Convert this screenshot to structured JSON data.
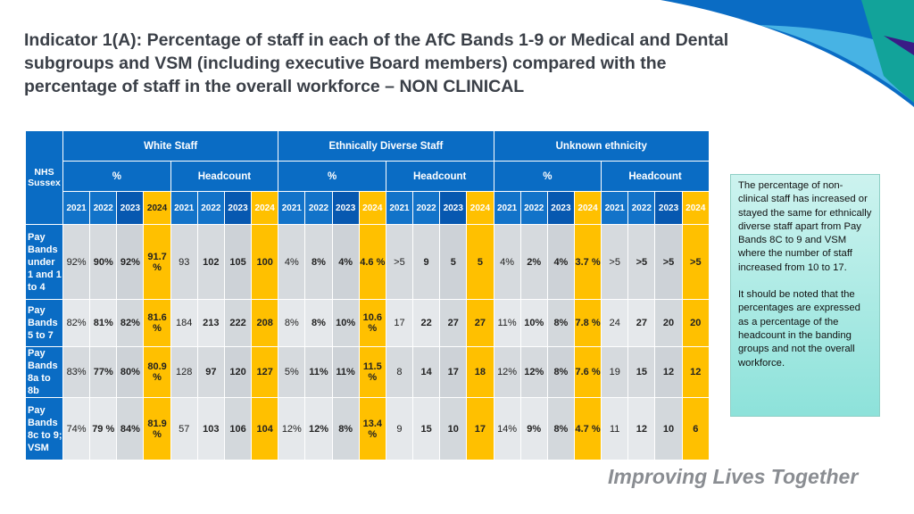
{
  "title": "Indicator 1(A): Percentage of staff in each of the AfC Bands 1-9 or Medical and Dental subgroups and VSM (including executive Board members) compared with the percentage of staff in the overall workforce – NON CLINICAL",
  "colors": {
    "header_blue": "#0a6cc4",
    "header_dark_blue": "#0758b0",
    "highlight_yellow": "#ffc000",
    "note_bg": "#aee9e2",
    "footer_gray": "#8a8d92"
  },
  "table": {
    "corner": "NHS Sussex",
    "groups": [
      "White Staff",
      "Ethnically Diverse Staff",
      "Unknown ethnicity"
    ],
    "subgroups": [
      "%",
      "Headcount",
      "%",
      "Headcount",
      "%",
      "Headcount"
    ],
    "years": [
      "2021",
      "2022",
      "2023",
      "2024"
    ],
    "rows": [
      {
        "label": "Pay Bands under 1 and 1 to 4",
        "values": [
          "92%",
          "90%",
          "92%",
          "91.7 %",
          "93",
          "102",
          "105",
          "100",
          "4%",
          "8%",
          "4%",
          "4.6 %",
          ">5",
          "9",
          "5",
          "5",
          "4%",
          "2%",
          "4%",
          "3.7 %",
          ">5",
          ">5",
          ">5",
          ">5"
        ]
      },
      {
        "label": "Pay Bands 5 to 7",
        "values": [
          "82%",
          "81%",
          "82%",
          "81.6 %",
          "184",
          "213",
          "222",
          "208",
          "8%",
          "8%",
          "10%",
          "10.6 %",
          "17",
          "22",
          "27",
          "27",
          "11%",
          "10%",
          "8%",
          "7.8 %",
          "24",
          "27",
          "20",
          "20"
        ]
      },
      {
        "label": "Pay Bands 8a to 8b",
        "values": [
          "83%",
          "77%",
          "80%",
          "80.9 %",
          "128",
          "97",
          "120",
          "127",
          "5%",
          "11%",
          "11%",
          "11.5 %",
          "8",
          "14",
          "17",
          "18",
          "12%",
          "12%",
          "8%",
          "7.6 %",
          "19",
          "15",
          "12",
          "12"
        ]
      },
      {
        "label": "Pay Bands 8c to 9; VSM",
        "values": [
          "74%",
          "79 %",
          "84%",
          "81.9 %",
          "57",
          "103",
          "106",
          "104",
          "12%",
          "12%",
          "8%",
          "13.4 %",
          "9",
          "15",
          "10",
          "17",
          "14%",
          "9%",
          "8%",
          "4.7 %",
          "11",
          "12",
          "10",
          "6"
        ]
      }
    ]
  },
  "note": {
    "p1": "The percentage of non-clinical staff has increased or stayed the same for ethnically diverse staff apart from Pay Bands 8C to 9 and VSM where the number of staff increased from 10 to 17.",
    "p2": "It should be noted that the percentages are expressed as a percentage of the headcount in the banding groups and not the overall workforce."
  },
  "footer": "Improving Lives Together"
}
